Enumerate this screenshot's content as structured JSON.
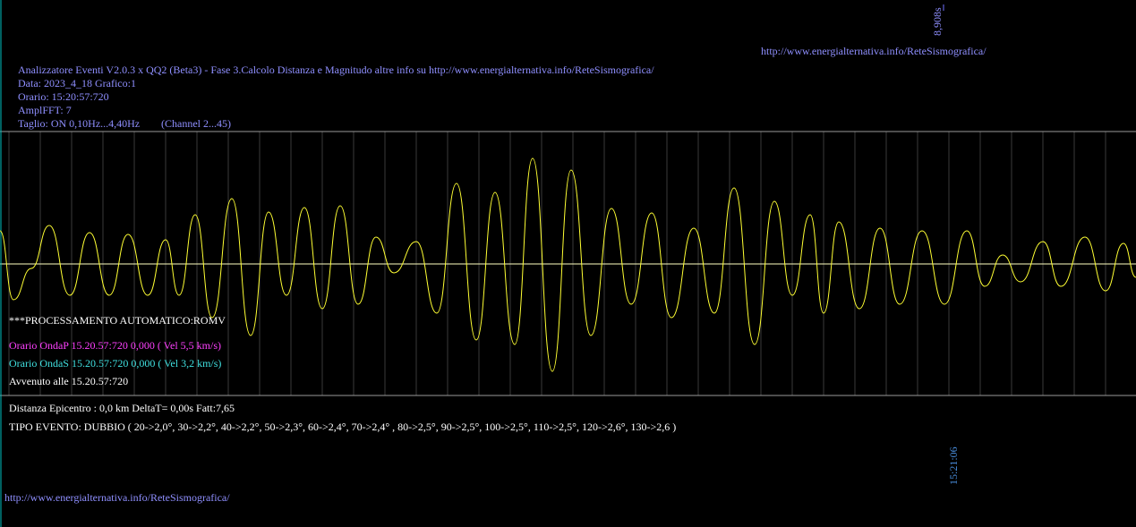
{
  "top_link": "http://www.energialternativa.info/ReteSismografica/",
  "scale_label": "8,908s",
  "header": {
    "title": "Analizzatore Eventi V2.0.3 x QQ2 (Beta3) - Fase 3.Calcolo Distanza e Magnitudo altre info su http://www.energialternativa.info/ReteSismografica/",
    "date": "Data: 2023_4_18 Grafico:1",
    "time": "Orario: 15:20:57:720",
    "ampl": "AmplFFT: 7",
    "filter": "Taglio: ON 0,10Hz...4,40Hz",
    "channel": "(Channel 2...45)"
  },
  "processing": {
    "auto": "***PROCESSAMENTO AUTOMATICO:ROMV",
    "wave_p": "Orario OndaP 15.20.57:720  0,000 ( Vel 5,5 km/s)",
    "wave_s": "Orario OndaS 15.20.57:720  0,000 ( Vel 3,2 km/s)",
    "occurred": "Avvenuto alle 15.20.57:720"
  },
  "result": {
    "distance": "Distanza Epicentro : 0,0 km DeltaT= 0,00s  Fatt:7,65",
    "event_type": "TIPO EVENTO: DUBBIO ( 20->2,0°, 30->2,2°, 40->2,2°, 50->2,3°, 60->2,4°, 70->2,4° , 80->2,5°, 90->2,5°, 100->2,5°, 110->2,5°, 120->2,6°, 130->2,6 )"
  },
  "end_time": "15:21:06",
  "bottom_link": "http://www.energialternativa.info/ReteSismografica/"
}
